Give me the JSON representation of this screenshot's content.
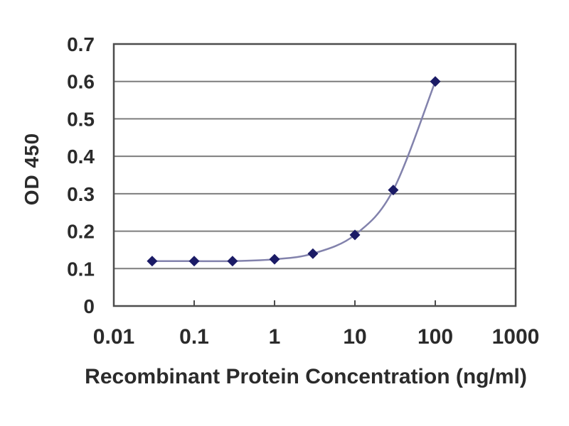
{
  "chart_data": {
    "type": "line",
    "title": "",
    "xlabel": "Recombinant Protein Concentration (ng/ml)",
    "ylabel": "OD 450",
    "x_scale": "log",
    "xlim": [
      0.01,
      1000
    ],
    "ylim": [
      0,
      0.7
    ],
    "x_ticks": [
      0.01,
      0.1,
      1,
      10,
      100,
      1000
    ],
    "x_tick_labels": [
      "0.01",
      "0.1",
      "1",
      "10",
      "100",
      "1000"
    ],
    "y_ticks": [
      0,
      0.1,
      0.2,
      0.3,
      0.4,
      0.5,
      0.6,
      0.7
    ],
    "y_tick_labels": [
      "0",
      "0.1",
      "0.2",
      "0.3",
      "0.4",
      "0.5",
      "0.6",
      "0.7"
    ],
    "grid": "horizontal",
    "legend": "none",
    "series": [
      {
        "name": "OD 450",
        "marker": "diamond",
        "line_style": "smooth",
        "x": [
          0.03,
          0.1,
          0.3,
          1,
          3,
          10,
          30,
          100
        ],
        "y": [
          0.12,
          0.12,
          0.12,
          0.125,
          0.14,
          0.19,
          0.31,
          0.6
        ]
      }
    ],
    "colors": {
      "line": "#8282ac",
      "marker": "#1b1b66",
      "grid": "#7d7d7d",
      "axis_border": "#4d4d4d",
      "text": "#2b2b2b",
      "background": "#ffffff"
    }
  }
}
